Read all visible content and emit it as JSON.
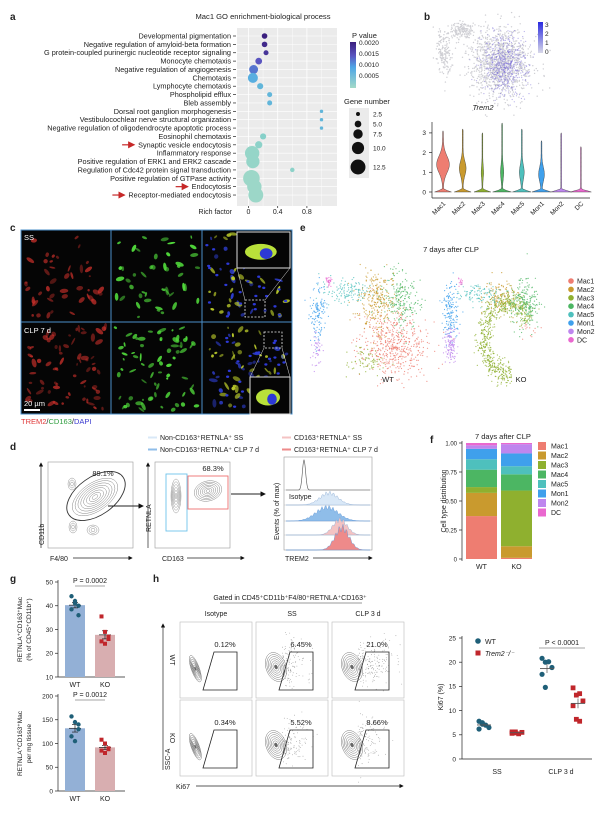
{
  "panel_labels": {
    "a": "a",
    "b": "b",
    "c": "c",
    "d": "d",
    "e": "e",
    "f": "f",
    "g": "g",
    "h": "h"
  },
  "colors": {
    "clusters": {
      "Mac1": "#ee7d71",
      "Mac2": "#c99a2e",
      "Mac3": "#8fb02f",
      "Mac4": "#4cb663",
      "Mac5": "#4ec0bd",
      "Mon1": "#3fa0ec",
      "Mon2": "#be86ee",
      "DC": "#ea68cf"
    },
    "wt": "#1f5f78",
    "ko": "#c0262b",
    "wt_bar": "#93b0d6",
    "ko_bar": "#d8aeb0",
    "highlight_arrow": "#c62828"
  },
  "panel_c": {
    "conditions": [
      "SS",
      "CLP 7 d"
    ],
    "scale_bar": "20 µm",
    "stains": [
      {
        "label": "TREM2",
        "color": "#e03a3a"
      },
      {
        "label": "/",
        "color": "#222"
      },
      {
        "label": "CD163",
        "color": "#2e9e3e"
      },
      {
        "label": "/",
        "color": "#222"
      },
      {
        "label": "DAPI",
        "color": "#3a3ad0"
      }
    ]
  },
  "panel_d": {
    "legend": [
      {
        "label": "Non-CD163⁺RETNLA⁺ SS",
        "color": "#d9e8f7"
      },
      {
        "label": "Non-CD163⁺RETNLA⁺ CLP 7 d",
        "color": "#8fbde9"
      },
      {
        "label": "CD163⁺RETNLA⁺ SS",
        "color": "#f4c3c3"
      },
      {
        "label": "CD163⁺RETNLA⁺ CLP 7 d",
        "color": "#ee8a8a"
      }
    ],
    "plot1": {
      "xlabel": "F4/80",
      "ylabel": "CD11b",
      "gate_percent": "89.1%"
    },
    "plot2": {
      "xlabel": "CD163",
      "ylabel": "RETNLA",
      "gate_percent": "68.3%"
    },
    "plot3": {
      "xlabel": "TREM2",
      "ylabel": "Events (% of max)",
      "isotype_label": "Isotype"
    }
  },
  "panel_h_flow": {
    "header": "Gated in CD45⁺CD11b⁺F4/80⁺RETNLA⁺CD163⁺",
    "columns": [
      "Isotype",
      "SS",
      "CLP 3 d"
    ],
    "rows": [
      "WT",
      "KO"
    ],
    "percentages": [
      [
        "0.12%",
        "6.45%",
        "21.0%"
      ],
      [
        "0.34%",
        "5.52%",
        "8.66%"
      ]
    ],
    "ylabel": "SSC-A",
    "xlabel": "Ki67"
  },
  "chart_data": [
    {
      "panel": "a",
      "type": "scatter",
      "title": "Mac1 GO enrichment-biological process",
      "xlabel": "Rich factor",
      "x_ticks": [
        0,
        0.4,
        0.8
      ],
      "terms": [
        "Developmental pigmentation",
        "Negative regulation of amyloid-beta formation",
        "G protein-coupled purinergic nucleotide receptor signaling",
        "Monocyte chemotaxis",
        "Negative regulation of angiogenesis",
        "Chemotaxis",
        "Lymphocyte chemotaxis",
        "Phospholipid efflux",
        "Bleb assembly",
        "Dorsal root ganglion morphogenesis",
        "Vestibulocochlear nerve structural organization",
        "Negative regulation of oligodendrocyte apoptotic process",
        "Eosinophil chemotaxis",
        "Synaptic vesicle endocytosis",
        "Inflammatory response",
        "Positive regulation of ERK1 and ERK2 cascade",
        "Regulation of Cdc42 protein signal transduction",
        "Positive regulation of GTPase activity",
        "Endocytosis",
        "Receptor-mediated endocytosis"
      ],
      "rich_factor": [
        0.22,
        0.22,
        0.24,
        0.14,
        0.07,
        0.06,
        0.16,
        0.29,
        0.29,
        1.0,
        1.0,
        1.0,
        0.2,
        0.14,
        0.05,
        0.06,
        0.6,
        0.04,
        0.08,
        0.1
      ],
      "gene_number": [
        4,
        4,
        3.5,
        5,
        7,
        8,
        4.5,
        3.5,
        3.5,
        2,
        2,
        2,
        4.5,
        5.5,
        12,
        11,
        3,
        14,
        12,
        12.5
      ],
      "p_value": [
        0.002,
        0.0019,
        0.0018,
        0.0015,
        0.0013,
        0.0009,
        0.0008,
        0.0008,
        0.0008,
        0.0008,
        0.0008,
        0.0008,
        0.0004,
        0.0003,
        0.0002,
        0.0002,
        0.0003,
        0.0001,
        0.0001,
        0.0001
      ],
      "highlighted_terms": [
        13,
        18,
        19
      ],
      "color_legend": {
        "title": "P value",
        "ticks": [
          "0.0020",
          "0.0015",
          "0.0010",
          "0.0005"
        ]
      },
      "size_legend": {
        "title": "Gene number",
        "values": [
          "2.5",
          "5.0",
          "7.5",
          "10.0",
          "12.5"
        ]
      }
    },
    {
      "panel": "b",
      "type": "violin",
      "feature_plot": {
        "gene": "Trem2",
        "colorbar_ticks": [
          "3",
          "2",
          "1",
          "0"
        ]
      },
      "categories": [
        "Mac1",
        "Mac2",
        "Mac3",
        "Mac4",
        "Mac5",
        "Mon1",
        "Mon2",
        "DC"
      ],
      "max_expression": [
        3.1,
        3.2,
        3.0,
        3.5,
        3.2,
        2.6,
        3.0,
        2.3
      ],
      "y_ticks": [
        "0",
        "1",
        "2",
        "3"
      ],
      "ylim": [
        0,
        3.5
      ]
    },
    {
      "panel": "e",
      "type": "scatter",
      "title": "7 days after CLP",
      "groups": [
        "WT",
        "KO"
      ],
      "legend": [
        "Mac1",
        "Mac2",
        "Mac3",
        "Mac4",
        "Mac5",
        "Mon1",
        "Mon2",
        "DC"
      ]
    },
    {
      "panel": "f",
      "type": "bar",
      "stacked": true,
      "title": "7 days after CLP",
      "ylabel": "Cell type distribution",
      "categories": [
        "WT",
        "KO"
      ],
      "y_ticks": [
        "0",
        "0.25",
        "0.50",
        "0.75",
        "1.00"
      ],
      "ylim": [
        0,
        1
      ],
      "series": [
        {
          "name": "Mac1",
          "values": [
            0.37,
            0.01
          ]
        },
        {
          "name": "Mac2",
          "values": [
            0.2,
            0.1
          ]
        },
        {
          "name": "Mac3",
          "values": [
            0.05,
            0.48
          ]
        },
        {
          "name": "Mac4",
          "values": [
            0.15,
            0.14
          ]
        },
        {
          "name": "Mac5",
          "values": [
            0.09,
            0.07
          ]
        },
        {
          "name": "Mon1",
          "values": [
            0.09,
            0.11
          ]
        },
        {
          "name": "Mon2",
          "values": [
            0.03,
            0.08
          ]
        },
        {
          "name": "DC",
          "values": [
            0.02,
            0.01
          ]
        }
      ]
    },
    {
      "panel": "g-top",
      "type": "bar",
      "ylabel": [
        "RETNLA⁺CD163⁺Mac",
        "(% of CD45⁺CD11b⁺)"
      ],
      "categories": [
        "WT",
        "KO"
      ],
      "points": [
        [
          44,
          41,
          40,
          38.5,
          42,
          36
        ],
        [
          35.5,
          29,
          27,
          25,
          24,
          26
        ]
      ],
      "y_ticks": [
        "10",
        "20",
        "30",
        "40",
        "50"
      ],
      "ylim": [
        10,
        50
      ],
      "p_label": "P = 0.0002"
    },
    {
      "panel": "g-bottom",
      "type": "bar",
      "ylabel": [
        "RETNLA⁺CD163⁺Mac",
        "per mg tissue"
      ],
      "categories": [
        "WT",
        "KO"
      ],
      "points": [
        [
          157,
          145,
          130,
          115,
          105,
          140
        ],
        [
          108,
          100,
          90,
          85,
          80,
          88
        ]
      ],
      "y_ticks": [
        "0",
        "50",
        "100",
        "150",
        "200"
      ],
      "ylim": [
        0,
        200
      ],
      "p_label": "P = 0.0012"
    },
    {
      "panel": "h",
      "type": "scatter",
      "ylabel": "Ki67 (%)",
      "categories": [
        "SS",
        "CLP 3 d"
      ],
      "y_ticks": [
        "0",
        "5",
        "10",
        "15",
        "20",
        "25"
      ],
      "ylim": [
        0,
        25
      ],
      "series": [
        {
          "name": "WT",
          "values": [
            [
              7.8,
              7.5,
              7.0,
              6.5,
              6.2,
              7.2
            ],
            [
              20.8,
              20.0,
              20.1,
              18.9,
              17.5,
              14.8
            ]
          ]
        },
        {
          "name": "Trem2⁻/⁻",
          "values": [
            [
              5.6,
              5.4,
              5.2,
              5.5,
              5.3,
              5.6
            ],
            [
              14.7,
              13.2,
              13.5,
              12.0,
              11.0,
              8.2,
              7.8
            ]
          ]
        }
      ],
      "p_label": "P < 0.0001"
    }
  ]
}
